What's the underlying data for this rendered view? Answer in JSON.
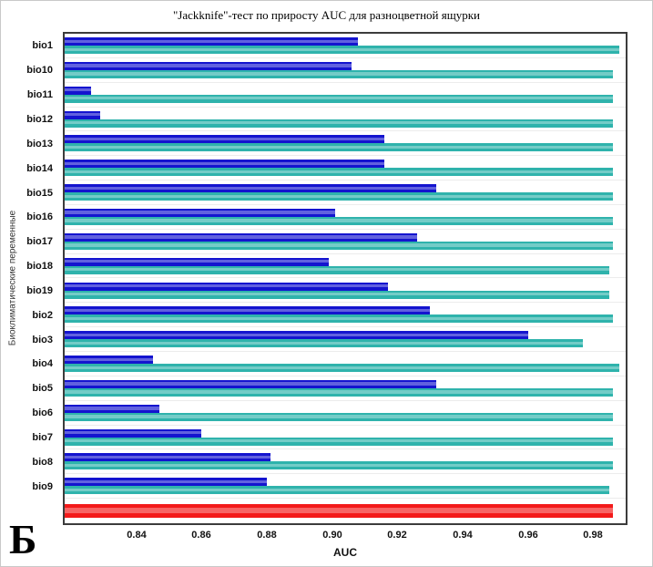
{
  "panel_label": "Б",
  "chart_data": {
    "type": "bar",
    "orientation": "horizontal",
    "title": "\"Jackknife\"-тест по приросту AUC для разноцветной ящурки",
    "xlabel": "AUC",
    "ylabel": "Биоклиматические переменные",
    "xlim": [
      0.818,
      0.99
    ],
    "xticks": [
      0.84,
      0.86,
      0.88,
      0.9,
      0.92,
      0.94,
      0.96,
      0.98
    ],
    "grid": "faint horizontal row separators, no vertical gridlines",
    "legend_position": "none visible",
    "categories": [
      "bio1",
      "bio10",
      "bio11",
      "bio12",
      "bio13",
      "bio14",
      "bio15",
      "bio16",
      "bio17",
      "bio18",
      "bio19",
      "bio2",
      "bio3",
      "bio4",
      "bio5",
      "bio6",
      "bio7",
      "bio8",
      "bio9"
    ],
    "series": [
      {
        "name": "dark-blue-short-bars",
        "color": "#1414cf",
        "values": [
          0.908,
          0.906,
          0.826,
          0.829,
          0.916,
          0.916,
          0.932,
          0.901,
          0.926,
          0.899,
          0.917,
          0.93,
          0.96,
          0.845,
          0.932,
          0.847,
          0.86,
          0.881,
          0.88
        ]
      },
      {
        "name": "teal-long-bars",
        "color": "#2fb3ac",
        "values": [
          0.988,
          0.986,
          0.986,
          0.986,
          0.986,
          0.986,
          0.986,
          0.986,
          0.986,
          0.985,
          0.985,
          0.986,
          0.977,
          0.988,
          0.986,
          0.986,
          0.986,
          0.986,
          0.985
        ]
      }
    ],
    "summary_bar": {
      "name": "red-bottom-bar",
      "color": "#f31a1a",
      "value": 0.986
    }
  }
}
